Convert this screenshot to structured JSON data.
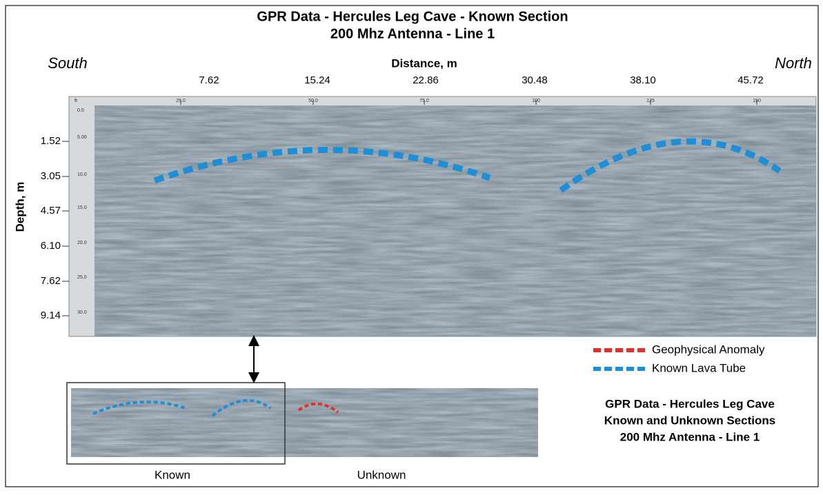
{
  "header": {
    "title": "GPR Data - Hercules Leg Cave - Known Section",
    "subtitle": "200 Mhz Antenna - Line 1"
  },
  "labels": {
    "south": "South",
    "north": "North",
    "x_axis": "Distance, m",
    "y_axis": "Depth, m",
    "ft_corner": "ft"
  },
  "top_ticks_m": [
    "7.62",
    "15.24",
    "22.86",
    "30.48",
    "38.10",
    "45.72"
  ],
  "top_ticks_ft": [
    "25.0",
    "50.0",
    "75.0",
    "100",
    "125",
    "150"
  ],
  "left_ticks_ft": [
    "0.0",
    "5.00",
    "10.0",
    "15.0",
    "20.0",
    "25.0",
    "30.0"
  ],
  "left_ticks_m": [
    "1.52",
    "3.05",
    "4.57",
    "6.10",
    "7.62",
    "9.14"
  ],
  "legend": [
    {
      "label": "Geophysical Anomaly",
      "color": "#e0312a"
    },
    {
      "label": "Known Lava Tube",
      "color": "#1e8fd6"
    }
  ],
  "inset": {
    "title_lines": [
      "GPR Data - Hercules Leg Cave",
      "Known and Unknown Sections",
      "200 Mhz Antenna - Line 1"
    ],
    "known": "Known",
    "unknown": "Unknown"
  }
}
